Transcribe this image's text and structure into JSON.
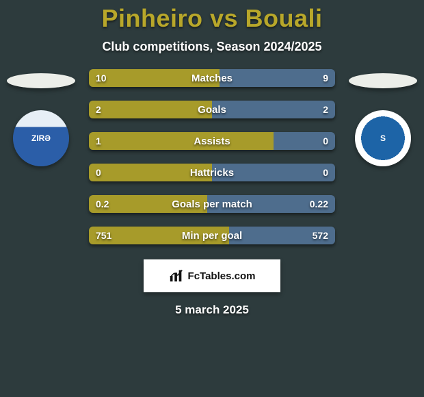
{
  "palette": {
    "background": "#2d3b3d",
    "title_color": "#b8a72a",
    "text_color": "#ffffff",
    "bar_left_color": "#a79b2a",
    "bar_right_color": "#4e6d8d",
    "ellipse_color": "#eceee9",
    "attribution_bg": "#ffffff",
    "attribution_text": "#111111"
  },
  "header": {
    "title": "Pinheiro vs Bouali",
    "subtitle": "Club competitions, Season 2024/2025"
  },
  "teams": {
    "left": {
      "short": "ZIRƏ",
      "crest_class": "crest-zire"
    },
    "right": {
      "short": "S",
      "crest_class": "crest-sabah"
    }
  },
  "stats": [
    {
      "label": "Matches",
      "left_value": "10",
      "right_value": "9",
      "left_pct": 53,
      "right_pct": 47
    },
    {
      "label": "Goals",
      "left_value": "2",
      "right_value": "2",
      "left_pct": 50,
      "right_pct": 50
    },
    {
      "label": "Assists",
      "left_value": "1",
      "right_value": "0",
      "left_pct": 75,
      "right_pct": 25
    },
    {
      "label": "Hattricks",
      "left_value": "0",
      "right_value": "0",
      "left_pct": 50,
      "right_pct": 50
    },
    {
      "label": "Goals per match",
      "left_value": "0.2",
      "right_value": "0.22",
      "left_pct": 48,
      "right_pct": 52
    },
    {
      "label": "Min per goal",
      "left_value": "751",
      "right_value": "572",
      "left_pct": 57,
      "right_pct": 43
    }
  ],
  "attribution": {
    "text": "FcTables.com"
  },
  "footer": {
    "date": "5 march 2025"
  }
}
